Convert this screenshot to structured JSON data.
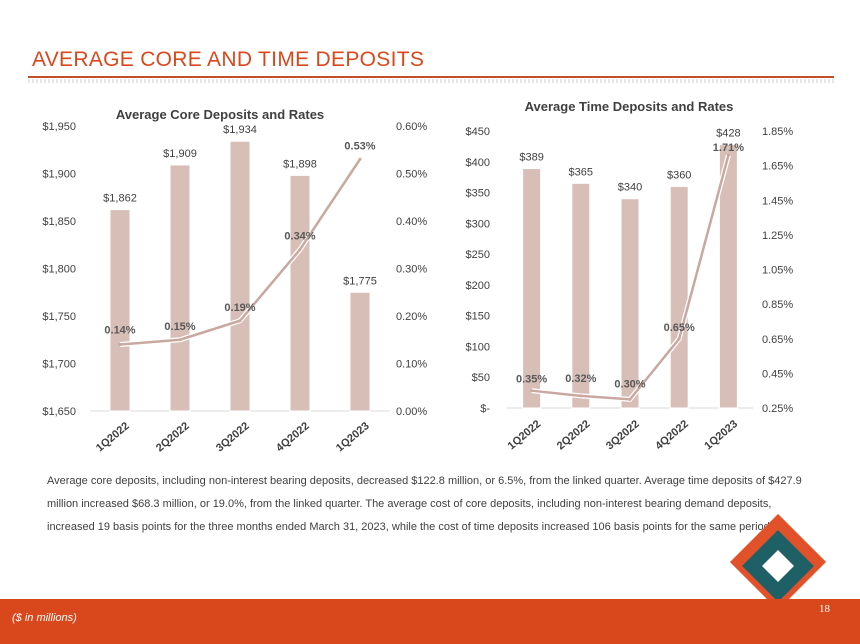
{
  "page": {
    "title": "AVERAGE CORE AND TIME DEPOSITS",
    "body": "Average core deposits, including non-interest bearing deposits, decreased $122.8 million, or 6.5%, from the linked quarter. Average time deposits of $427.9 million increased $68.3 million, or 19.0%, from the linked quarter. The average cost of core deposits, including non-interest bearing demand deposits, increased 19 basis points for the three months ended March 31, 2023, while the cost of time deposits increased 106 basis points for the same period.",
    "footnote": "($ in millions)",
    "page_number": "18",
    "logo_icon": "interlocking-diamond-logo-icon"
  },
  "colors": {
    "accent": "#d9481c",
    "bar": "#d7bfb8",
    "line": "#c9a8a0",
    "teal": "#1f5f66",
    "text": "#404040"
  },
  "chart_data": [
    {
      "type": "bar",
      "title": "Average Core Deposits and Rates",
      "categories": [
        "1Q2022",
        "2Q2022",
        "3Q2022",
        "4Q2022",
        "1Q2023"
      ],
      "series": [
        {
          "name": "Average Core Deposits",
          "axis": "left",
          "values": [
            1862,
            1909,
            1934,
            1898,
            1775
          ],
          "labels": [
            "$1,862",
            "$1,909",
            "$1,934",
            "$1,898",
            "$1,775"
          ]
        },
        {
          "name": "Rate",
          "type": "line",
          "axis": "right",
          "values": [
            0.14,
            0.15,
            0.19,
            0.34,
            0.53
          ],
          "labels": [
            "0.14%",
            "0.15%",
            "0.19%",
            "0.34%",
            "0.53%"
          ]
        }
      ],
      "ylim": [
        1650,
        1950
      ],
      "yticks": [
        "$1,650",
        "$1,700",
        "$1,750",
        "$1,800",
        "$1,850",
        "$1,900",
        "$1,950"
      ],
      "y2lim": [
        0,
        0.6
      ],
      "y2ticks": [
        "0.00%",
        "0.10%",
        "0.20%",
        "0.30%",
        "0.40%",
        "0.50%",
        "0.60%"
      ],
      "grid": false
    },
    {
      "type": "bar",
      "title": "Average Time Deposits and Rates",
      "categories": [
        "1Q2022",
        "2Q2022",
        "3Q2022",
        "4Q2022",
        "1Q2023"
      ],
      "series": [
        {
          "name": "Average Time Deposits",
          "axis": "left",
          "values": [
            389,
            365,
            340,
            360,
            428
          ],
          "labels": [
            "$389",
            "$365",
            "$340",
            "$360",
            "$428"
          ]
        },
        {
          "name": "Rate",
          "type": "line",
          "axis": "right",
          "values": [
            0.35,
            0.32,
            0.3,
            0.65,
            1.71
          ],
          "labels": [
            "0.35%",
            "0.32%",
            "0.30%",
            "0.65%",
            "1.71%"
          ]
        }
      ],
      "ylim": [
        0,
        450
      ],
      "yticks": [
        "$-",
        "$50",
        "$100",
        "$150",
        "$200",
        "$250",
        "$300",
        "$350",
        "$400",
        "$450"
      ],
      "y2lim": [
        0.25,
        1.85
      ],
      "y2ticks": [
        "0.25%",
        "0.45%",
        "0.65%",
        "0.85%",
        "1.05%",
        "1.25%",
        "1.45%",
        "1.65%",
        "1.85%"
      ],
      "grid": false
    }
  ]
}
